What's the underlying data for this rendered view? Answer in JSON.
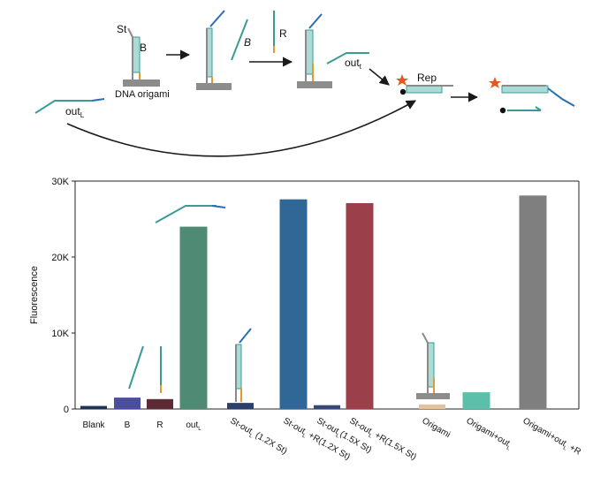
{
  "schematic": {
    "labels": {
      "st": "St",
      "b1": "B",
      "b2": "B",
      "r": "R",
      "origami": "DNA origami",
      "out_top": "out",
      "out_top_sub": "t",
      "out_left": "out",
      "out_left_sub": "L",
      "rep": "Rep"
    },
    "colors": {
      "strand_blue": "#2b6cb5",
      "strand_teal": "#3a9b95",
      "strand_gray": "#8a8a8a",
      "helix_fill": "#a9dcd6",
      "orange": "#e29a2f",
      "origami_block": "#8c8c8c",
      "star": "#e05a1f",
      "arrow": "#1a1a1a"
    }
  },
  "chart_data": {
    "type": "bar",
    "categories": [
      "Blank",
      "B",
      "R",
      "out_L",
      "St-out_L (1.2X St)",
      "St-out_L +R(1.2X St)",
      "St-out_L(1.5X St)",
      "St-out_L +R(1.5X St)",
      "Origami",
      "Origami+out_L",
      "Origami+out_L +R"
    ],
    "values": [
      400,
      1500,
      1300,
      24000,
      800,
      27600,
      500,
      27100,
      600,
      2200,
      28100
    ],
    "bar_colors": [
      "#1f3556",
      "#4b4ea0",
      "#5c2a34",
      "#4f8a74",
      "#2c3f6b",
      "#2f6796",
      "#34487a",
      "#9b3f4a",
      "#e4c39a",
      "#5bbfa9",
      "#7f7f7f"
    ],
    "ylabel": "Fluorescence",
    "ylim": [
      0,
      30000
    ],
    "yticks": [
      0,
      10000,
      20000,
      30000
    ],
    "ytick_labels": [
      "0",
      "10K",
      "20K",
      "30K"
    ],
    "tick_labels": [
      {
        "main": "Blank",
        "sub": "",
        "rest": ""
      },
      {
        "main": "B",
        "sub": "",
        "rest": ""
      },
      {
        "main": "R",
        "sub": "",
        "rest": ""
      },
      {
        "main": "out",
        "sub": "L",
        "rest": ""
      },
      {
        "main": "St-out",
        "sub": "L",
        "rest": " (1.2X St)"
      },
      {
        "main": "St-out",
        "sub": "L",
        "rest": " +R(1.2X St)"
      },
      {
        "main": "St-out",
        "sub": "L",
        "rest": "(1.5X St)"
      },
      {
        "main": "St-out",
        "sub": "L",
        "rest": " +R(1.5X St)"
      },
      {
        "main": "Origami",
        "sub": "",
        "rest": ""
      },
      {
        "main": "Origami+out",
        "sub": "L",
        "rest": ""
      },
      {
        "main": "Origami+out",
        "sub": "L",
        "rest": " +R"
      }
    ]
  }
}
